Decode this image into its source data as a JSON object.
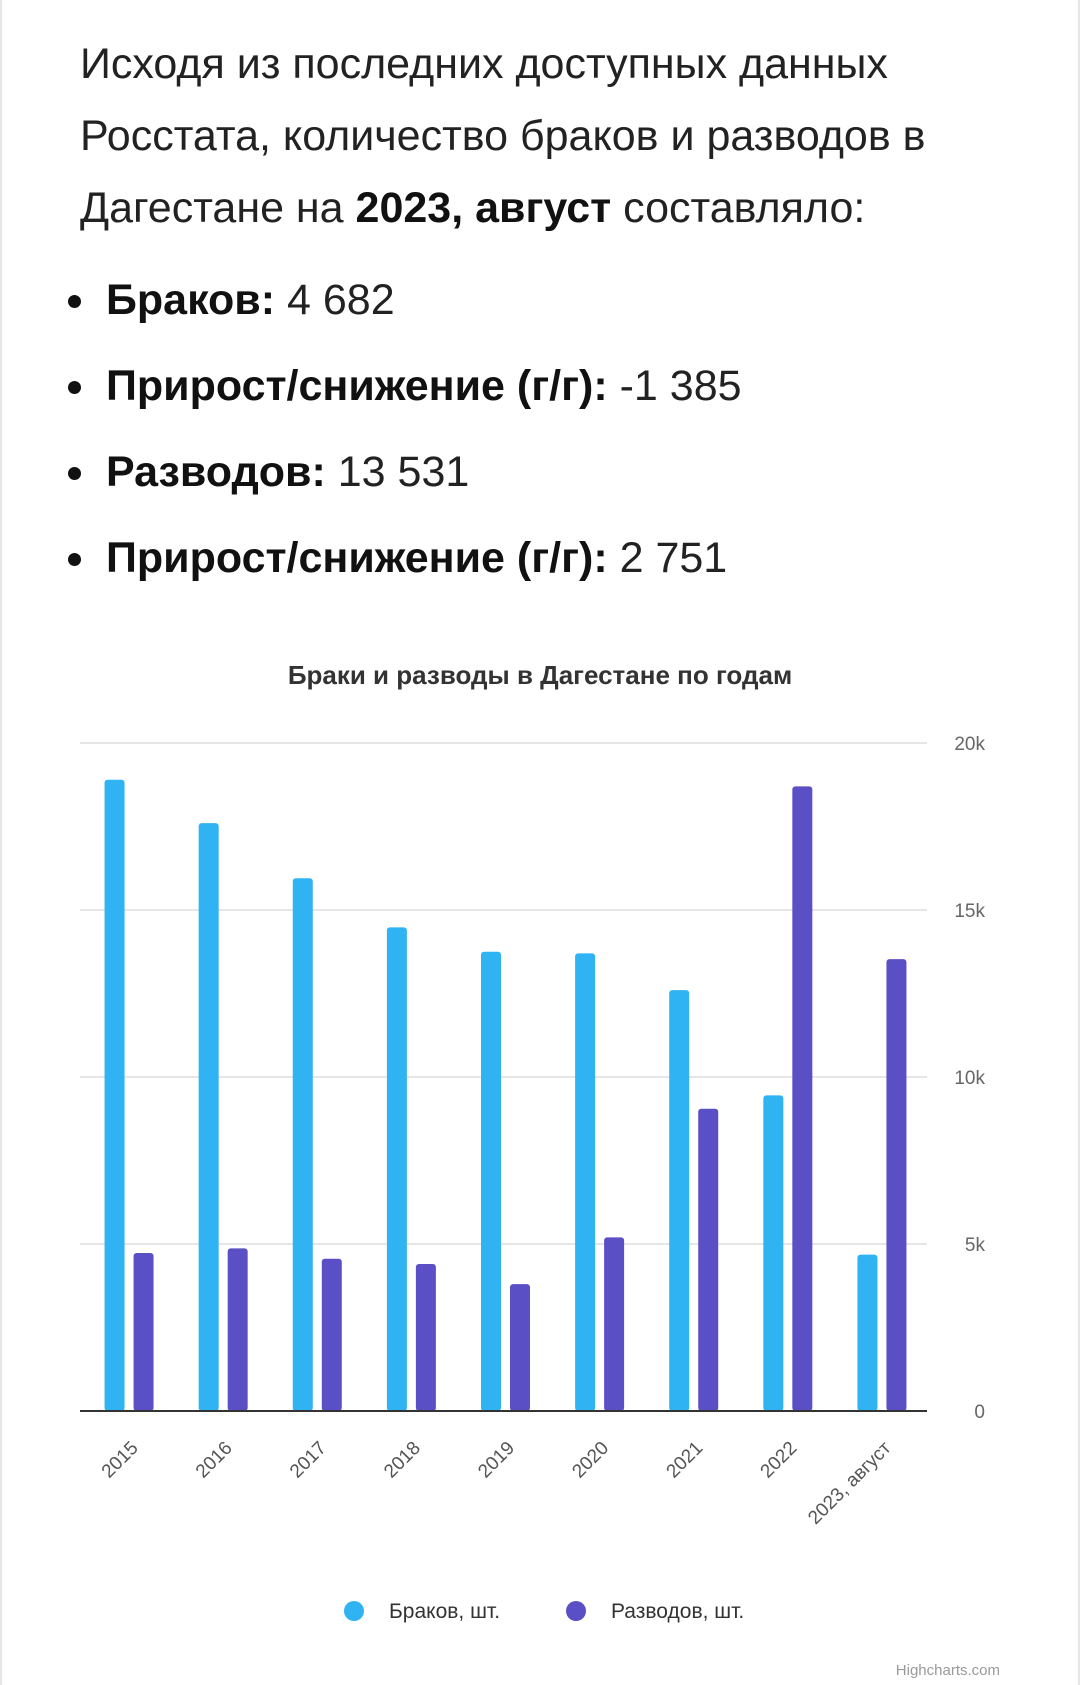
{
  "intro": {
    "text_before": "Исходя из последних доступных данных Росстата, количество браков и разводов в Дагестане на ",
    "period": "2023, август",
    "text_after": " составляло:"
  },
  "stats": [
    {
      "label": "Браков:",
      "value": "4 682"
    },
    {
      "label": "Прирост/снижение (г/г):",
      "value": "-1 385"
    },
    {
      "label": "Разводов:",
      "value": "13 531"
    },
    {
      "label": "Прирост/снижение (г/г):",
      "value": "2 751"
    }
  ],
  "chart_data": {
    "type": "bar",
    "title": "Браки и разводы в Дагестане по годам",
    "categories": [
      "2015",
      "2016",
      "2017",
      "2018",
      "2019",
      "2020",
      "2021",
      "2022",
      "2023, август"
    ],
    "series": [
      {
        "name": "Браков, шт.",
        "color": "#2fb3f3",
        "values": [
          18900,
          17600,
          15950,
          14480,
          13750,
          13700,
          12600,
          9450,
          4682
        ]
      },
      {
        "name": "Разводов, шт.",
        "color": "#5a4fc4",
        "values": [
          4730,
          4870,
          4560,
          4400,
          3800,
          5200,
          9050,
          18700,
          13531
        ]
      }
    ],
    "y_axis": {
      "min": 0,
      "max": 20000,
      "ticks": [
        0,
        5000,
        10000,
        15000,
        20000
      ],
      "tick_labels": [
        "0",
        "5k",
        "10k",
        "15k",
        "20k"
      ],
      "position": "right"
    },
    "xlabel": "",
    "ylabel": "",
    "grid": true,
    "legend_position": "bottom"
  },
  "credit": "Highcharts.com"
}
